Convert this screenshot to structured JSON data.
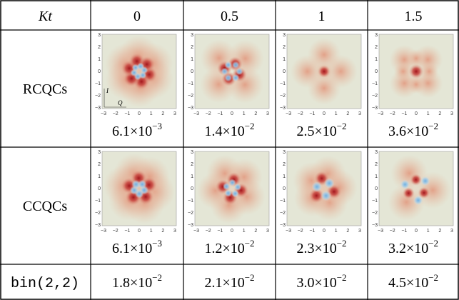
{
  "table": {
    "header": [
      "Kt",
      "0",
      "0.5",
      "1",
      "1.5"
    ],
    "plot_axes": {
      "yticks": [
        "3",
        "2",
        "1",
        "0",
        "−1",
        "−2",
        "−3"
      ],
      "xticks": [
        "−3",
        "−2",
        "−1",
        "0",
        "1",
        "2",
        "3"
      ],
      "i_label": "I",
      "q_label": "Q"
    },
    "rows": [
      {
        "label": "RCQCs",
        "values": [
          {
            "base": "6.1×10",
            "exponent": "−3"
          },
          {
            "base": "1.4×10",
            "exponent": "−2"
          },
          {
            "base": "2.5×10",
            "exponent": "−2"
          },
          {
            "base": "3.6×10",
            "exponent": "−2"
          }
        ]
      },
      {
        "label": "CCQCs",
        "values": [
          {
            "base": "6.1×10",
            "exponent": "−3"
          },
          {
            "base": "1.2×10",
            "exponent": "−2"
          },
          {
            "base": "2.3×10",
            "exponent": "−2"
          },
          {
            "base": "3.2×10",
            "exponent": "−2"
          }
        ]
      },
      {
        "label": "bin(2,2)",
        "values": [
          {
            "base": "1.8×10",
            "exponent": "−2"
          },
          {
            "base": "2.1×10",
            "exponent": "−2"
          },
          {
            "base": "3.0×10",
            "exponent": "−2"
          },
          {
            "base": "4.5×10",
            "exponent": "−2"
          }
        ]
      }
    ]
  }
}
